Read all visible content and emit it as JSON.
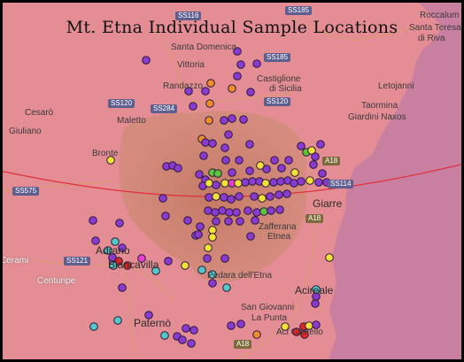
{
  "map": {
    "title": "Mt. Etna Individual Sample Locations",
    "colors": {
      "base": "#e48d94",
      "sea": "#c87fa0",
      "volcano": "#c87a62",
      "border": "#000000",
      "line": "#e0303a"
    },
    "places": [
      {
        "name": "Cesarò"
      },
      {
        "name": "Giuliano"
      },
      {
        "name": "Maletto"
      },
      {
        "name": "Bronte"
      },
      {
        "name": "Santa Domenica"
      },
      {
        "name": "Vittoria"
      },
      {
        "name": "Randazzo"
      },
      {
        "name": "Castiglione"
      },
      {
        "name": "di Sicilia"
      },
      {
        "name": "Roccalum"
      },
      {
        "name": "Santa Teresa"
      },
      {
        "name": "di Riva"
      },
      {
        "name": "Letojanni"
      },
      {
        "name": "Taormina"
      },
      {
        "name": "Giardini Naxos"
      },
      {
        "name": "Giarre"
      },
      {
        "name": "Zafferana"
      },
      {
        "name": "Etnea"
      },
      {
        "name": "Acireale"
      },
      {
        "name": "San Giovanni"
      },
      {
        "name": "La Punta"
      },
      {
        "name": "Paternò"
      },
      {
        "name": "Centuripe"
      },
      {
        "name": "Biancavilla"
      },
      {
        "name": "Adrano"
      },
      {
        "name": "Pedara dell'Etna"
      },
      {
        "name": "Aci Castello"
      },
      {
        "name": "Cerami"
      }
    ],
    "roads": [
      "SS116",
      "SS185",
      "SS185",
      "SS120",
      "SS284",
      "SS120",
      "SS575",
      "SS121",
      "A18",
      "A18",
      "A18",
      "SS114"
    ],
    "legend_colors": {
      "blue": "#4b3cd8",
      "purple": "#8a3ad0",
      "orange": "#f08c2a",
      "yellow": "#f2e236",
      "green": "#5bc43a",
      "magenta": "#e43fd0",
      "red": "#e02626",
      "cyan": "#52c8c8"
    }
  }
}
